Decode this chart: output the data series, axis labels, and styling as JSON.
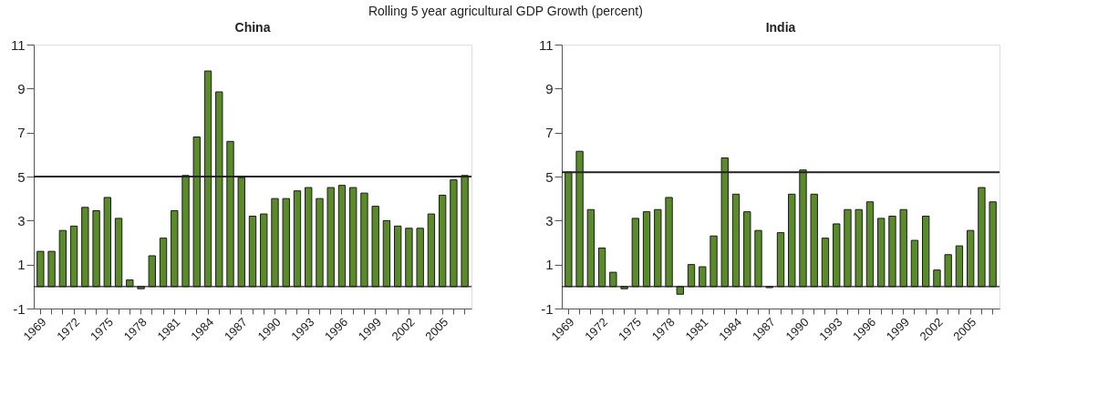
{
  "chart_data": [
    {
      "type": "bar",
      "title": "China",
      "annotations": [
        "Rolling 5 year agricultural GDP Growth (percent)"
      ],
      "categories": [
        "1969",
        null,
        null,
        "1972",
        null,
        null,
        "1975",
        null,
        null,
        "1978",
        null,
        null,
        "1981",
        null,
        null,
        "1984",
        null,
        null,
        "1987",
        null,
        null,
        "1990",
        null,
        null,
        "1993",
        null,
        null,
        "1996",
        null,
        null,
        "1999",
        null,
        null,
        "2002",
        null,
        null,
        "2005",
        null,
        null
      ],
      "series": [
        {
          "color": "#5a8a2a",
          "values": [
            1.6,
            1.6,
            2.55,
            2.75,
            3.6,
            3.45,
            4.05,
            3.1,
            0.3,
            -0.1,
            1.4,
            2.2,
            3.45,
            5.05,
            6.8,
            9.8,
            8.85,
            6.6,
            4.95,
            3.2,
            3.3,
            4.0,
            4.0,
            4.35,
            4.5,
            4.0,
            4.5,
            4.6,
            4.5,
            4.25,
            3.65,
            3.0,
            2.75,
            2.65,
            2.65,
            3.3,
            4.15,
            4.85,
            5.05
          ]
        }
      ],
      "ylim": [
        -1,
        11
      ],
      "yticks": [
        -1,
        1,
        3,
        5,
        7,
        9,
        11
      ],
      "grid": false,
      "ref_lines": [
        {
          "axis": "y",
          "value": 5.0,
          "color": "#222222"
        },
        {
          "axis": "y",
          "value": 0,
          "color": "#222222"
        }
      ]
    },
    {
      "type": "bar",
      "title": "India",
      "categories": [
        "1969",
        null,
        null,
        "1972",
        null,
        null,
        "1975",
        null,
        null,
        "1978",
        null,
        null,
        "1981",
        null,
        null,
        "1984",
        null,
        null,
        "1987",
        null,
        null,
        "1990",
        null,
        null,
        "1993",
        null,
        null,
        "1996",
        null,
        null,
        "1999",
        null,
        null,
        "2002",
        null,
        null,
        "2005",
        null,
        null
      ],
      "series": [
        {
          "color": "#5a8a2a",
          "values": [
            5.2,
            6.15,
            3.5,
            1.75,
            0.65,
            -0.1,
            3.1,
            3.4,
            3.5,
            4.05,
            -0.35,
            1.0,
            0.9,
            2.3,
            5.85,
            4.2,
            3.4,
            2.55,
            -0.05,
            2.45,
            4.2,
            5.3,
            4.2,
            2.2,
            2.85,
            3.5,
            3.5,
            3.85,
            3.1,
            3.2,
            3.5,
            2.1,
            3.2,
            0.75,
            1.45,
            1.85,
            2.55,
            4.5,
            3.85
          ]
        }
      ],
      "ylim": [
        -1,
        11
      ],
      "yticks": [
        -1,
        1,
        3,
        5,
        7,
        9,
        11
      ],
      "grid": false,
      "ref_lines": [
        {
          "axis": "y",
          "value": 5.2,
          "color": "#222222"
        },
        {
          "axis": "y",
          "value": 0,
          "color": "#222222"
        }
      ]
    }
  ]
}
